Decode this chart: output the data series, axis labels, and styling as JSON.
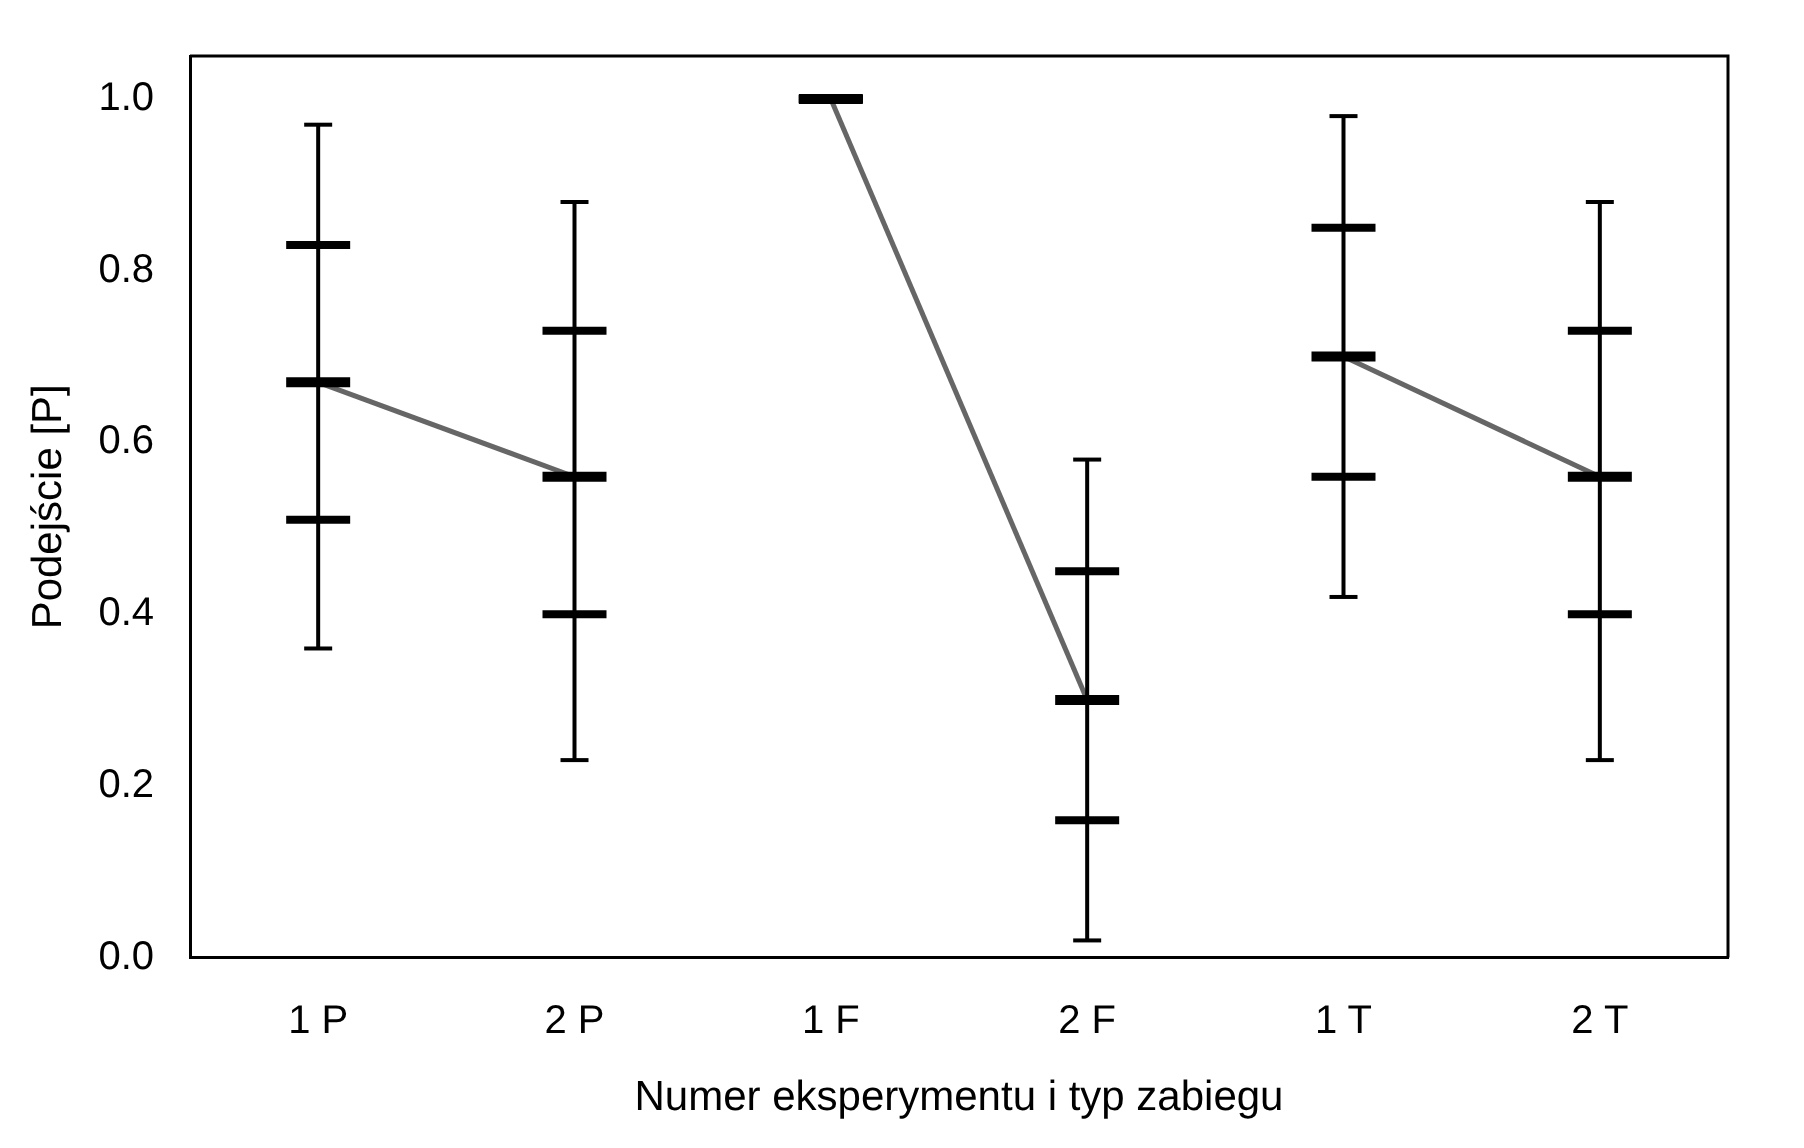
{
  "chart_data": {
    "type": "box",
    "xlabel": "Numer eksperymentu i typ zabiegu",
    "ylabel": "Podejście [P]",
    "categories": [
      "1 P",
      "2 P",
      "1 F",
      "2 F",
      "1 T",
      "2 T"
    ],
    "boxes": [
      {
        "low": 0.36,
        "q1": 0.51,
        "median": 0.67,
        "q3": 0.83,
        "high": 0.97
      },
      {
        "low": 0.23,
        "q1": 0.4,
        "median": 0.56,
        "q3": 0.73,
        "high": 0.88
      },
      {
        "low": 1.0,
        "q1": 1.0,
        "median": 1.0,
        "q3": 1.0,
        "high": 1.0
      },
      {
        "low": 0.02,
        "q1": 0.16,
        "median": 0.3,
        "q3": 0.45,
        "high": 0.58
      },
      {
        "low": 0.42,
        "q1": 0.56,
        "median": 0.7,
        "q3": 0.85,
        "high": 0.98
      },
      {
        "low": 0.23,
        "q1": 0.4,
        "median": 0.56,
        "q3": 0.73,
        "high": 0.88
      }
    ],
    "series": [
      {
        "type": "line",
        "color": "#666666",
        "x": [
          "1 P",
          "2 P"
        ],
        "values": [
          0.67,
          0.56
        ]
      },
      {
        "type": "line",
        "color": "#666666",
        "x": [
          "1 F",
          "2 F"
        ],
        "values": [
          1.0,
          0.3
        ]
      },
      {
        "type": "line",
        "color": "#666666",
        "x": [
          "1 T",
          "2 T"
        ],
        "values": [
          0.7,
          0.56
        ]
      }
    ],
    "color": "#000000",
    "ylim": [
      0,
      1.05
    ],
    "yticks": [
      {
        "value": 0,
        "label": "0.0"
      },
      {
        "value": 0.2,
        "label": "0.2"
      },
      {
        "value": 0.4,
        "label": "0.4"
      },
      {
        "value": 0.6,
        "label": "0.6"
      },
      {
        "value": 0.8,
        "label": "0.8"
      },
      {
        "value": 1.0,
        "label": "1.0"
      }
    ],
    "grid": false,
    "legend": false
  }
}
